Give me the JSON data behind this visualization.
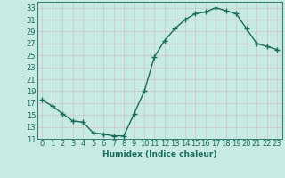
{
  "x": [
    0,
    1,
    2,
    3,
    4,
    5,
    6,
    7,
    8,
    9,
    10,
    11,
    12,
    13,
    14,
    15,
    16,
    17,
    18,
    19,
    20,
    21,
    22,
    23
  ],
  "y": [
    17.5,
    16.5,
    15.2,
    14.0,
    13.8,
    12.0,
    11.8,
    11.5,
    11.5,
    15.2,
    19.0,
    24.8,
    27.5,
    29.5,
    31.0,
    32.0,
    32.3,
    33.0,
    32.5,
    32.0,
    29.5,
    27.0,
    26.5,
    26.0
  ],
  "line_color": "#1a6b5a",
  "marker": "+",
  "marker_size": 4,
  "bg_color": "#c8eae4",
  "grid_color": "#b0d8d0",
  "xlabel": "Humidex (Indice chaleur)",
  "xlim": [
    -0.5,
    23.5
  ],
  "ylim": [
    11,
    34
  ],
  "yticks": [
    11,
    13,
    15,
    17,
    19,
    21,
    23,
    25,
    27,
    29,
    31,
    33
  ],
  "xticks": [
    0,
    1,
    2,
    3,
    4,
    5,
    6,
    7,
    8,
    9,
    10,
    11,
    12,
    13,
    14,
    15,
    16,
    17,
    18,
    19,
    20,
    21,
    22,
    23
  ],
  "xlabel_fontsize": 6.5,
  "tick_fontsize": 6,
  "linewidth": 1.0,
  "marker_linewidth": 1.0
}
